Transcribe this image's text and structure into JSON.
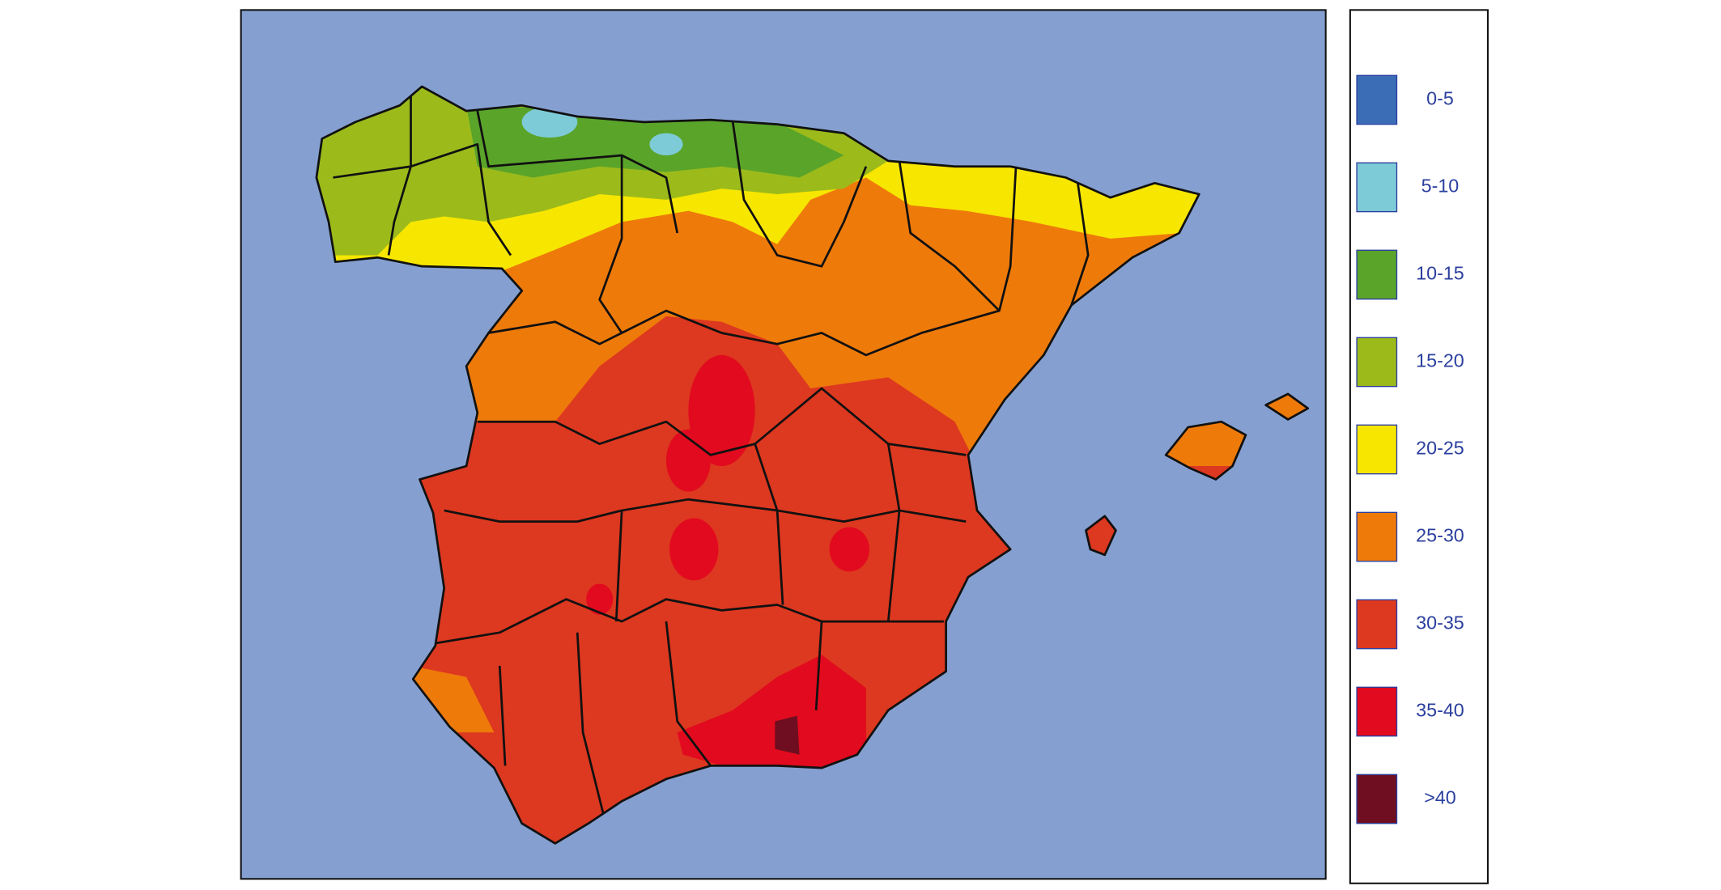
{
  "legend": {
    "items": [
      {
        "label": "0-5",
        "color": "#3a6db5"
      },
      {
        "label": "5-10",
        "color": "#7ecbd8"
      },
      {
        "label": "10-15",
        "color": "#5aa42a"
      },
      {
        "label": "15-20",
        "color": "#9cbb1b"
      },
      {
        "label": "20-25",
        "color": "#f7e600"
      },
      {
        "label": "25-30",
        "color": "#ee7a0a"
      },
      {
        "label": "30-35",
        "color": "#dd3820"
      },
      {
        "label": "35-40",
        "color": "#e20a1e"
      },
      {
        "label": ">40",
        "color": "#6e0e20"
      }
    ]
  }
}
